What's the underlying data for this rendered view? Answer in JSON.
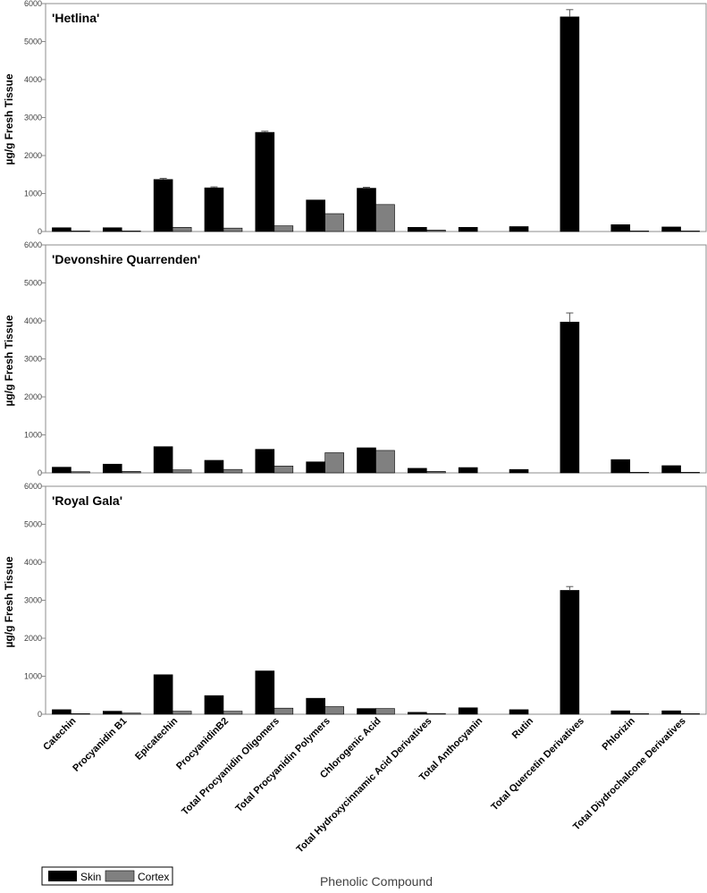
{
  "chart_data": {
    "type": "bar",
    "categories": [
      "Catechin",
      "Procyanidin B1",
      "Epicatechin",
      "ProcyanidinB2",
      "Total Procyanidin Oligomers",
      "Total Procyanidin Polymers",
      "Chlorogenic Acid",
      "Total Hydroxycinnamic Acid Derivatives",
      "Total Anthocyanin",
      "Rutin",
      "Total Quercetin Derivatives",
      "Phlorizin",
      "Total Diydrochalcone Derivatives"
    ],
    "xlabel": "Phenolic Compound",
    "ylabel": "µg/g Fresh Tissue",
    "ylim": [
      0,
      6000
    ],
    "yticks": [
      0,
      1000,
      2000,
      3000,
      4000,
      5000,
      6000
    ],
    "ytick_labels": [
      "0",
      "1000",
      "2000",
      "3000",
      "4000",
      "5000",
      "6000"
    ],
    "legend": {
      "position": "bottom-left",
      "entries": [
        "Skin",
        "Cortex"
      ]
    },
    "colors": {
      "Skin": "#000000",
      "Cortex": "#808080",
      "axis": "#8c8c8c"
    },
    "panels": [
      {
        "title": "'Hetlina'",
        "series": [
          {
            "name": "Skin",
            "values": [
              100,
              100,
              1370,
              1150,
              2610,
              830,
              1140,
              110,
              110,
              130,
              5650,
              180,
              120
            ],
            "errors": [
              0,
              0,
              30,
              25,
              30,
              0,
              25,
              0,
              0,
              0,
              190,
              0,
              0
            ]
          },
          {
            "name": "Cortex",
            "values": [
              15,
              15,
              110,
              90,
              150,
              470,
              710,
              40,
              0,
              0,
              0,
              15,
              15
            ],
            "errors": [
              0,
              0,
              0,
              0,
              0,
              0,
              0,
              0,
              0,
              0,
              0,
              0,
              0
            ]
          }
        ]
      },
      {
        "title": "'Devonshire Quarrenden'",
        "series": [
          {
            "name": "Skin",
            "values": [
              150,
              230,
              690,
              330,
              620,
              290,
              660,
              120,
              140,
              90,
              3970,
              350,
              190
            ],
            "errors": [
              0,
              0,
              0,
              0,
              0,
              0,
              0,
              0,
              0,
              0,
              240,
              0,
              0
            ]
          },
          {
            "name": "Cortex",
            "values": [
              30,
              40,
              80,
              90,
              180,
              530,
              590,
              40,
              0,
              0,
              0,
              15,
              15
            ],
            "errors": [
              0,
              0,
              0,
              0,
              0,
              0,
              0,
              0,
              0,
              0,
              0,
              0,
              0
            ]
          }
        ]
      },
      {
        "title": "'Royal Gala'",
        "series": [
          {
            "name": "Skin",
            "values": [
              120,
              80,
              1040,
              490,
              1140,
              420,
              150,
              50,
              170,
              120,
              3260,
              90,
              90
            ],
            "errors": [
              0,
              0,
              0,
              0,
              0,
              0,
              0,
              0,
              0,
              0,
              100,
              0,
              0
            ]
          },
          {
            "name": "Cortex",
            "values": [
              15,
              30,
              80,
              80,
              160,
              200,
              150,
              20,
              0,
              0,
              0,
              15,
              15
            ],
            "errors": [
              0,
              0,
              0,
              0,
              0,
              0,
              0,
              0,
              0,
              0,
              0,
              0,
              0
            ]
          }
        ]
      }
    ]
  }
}
